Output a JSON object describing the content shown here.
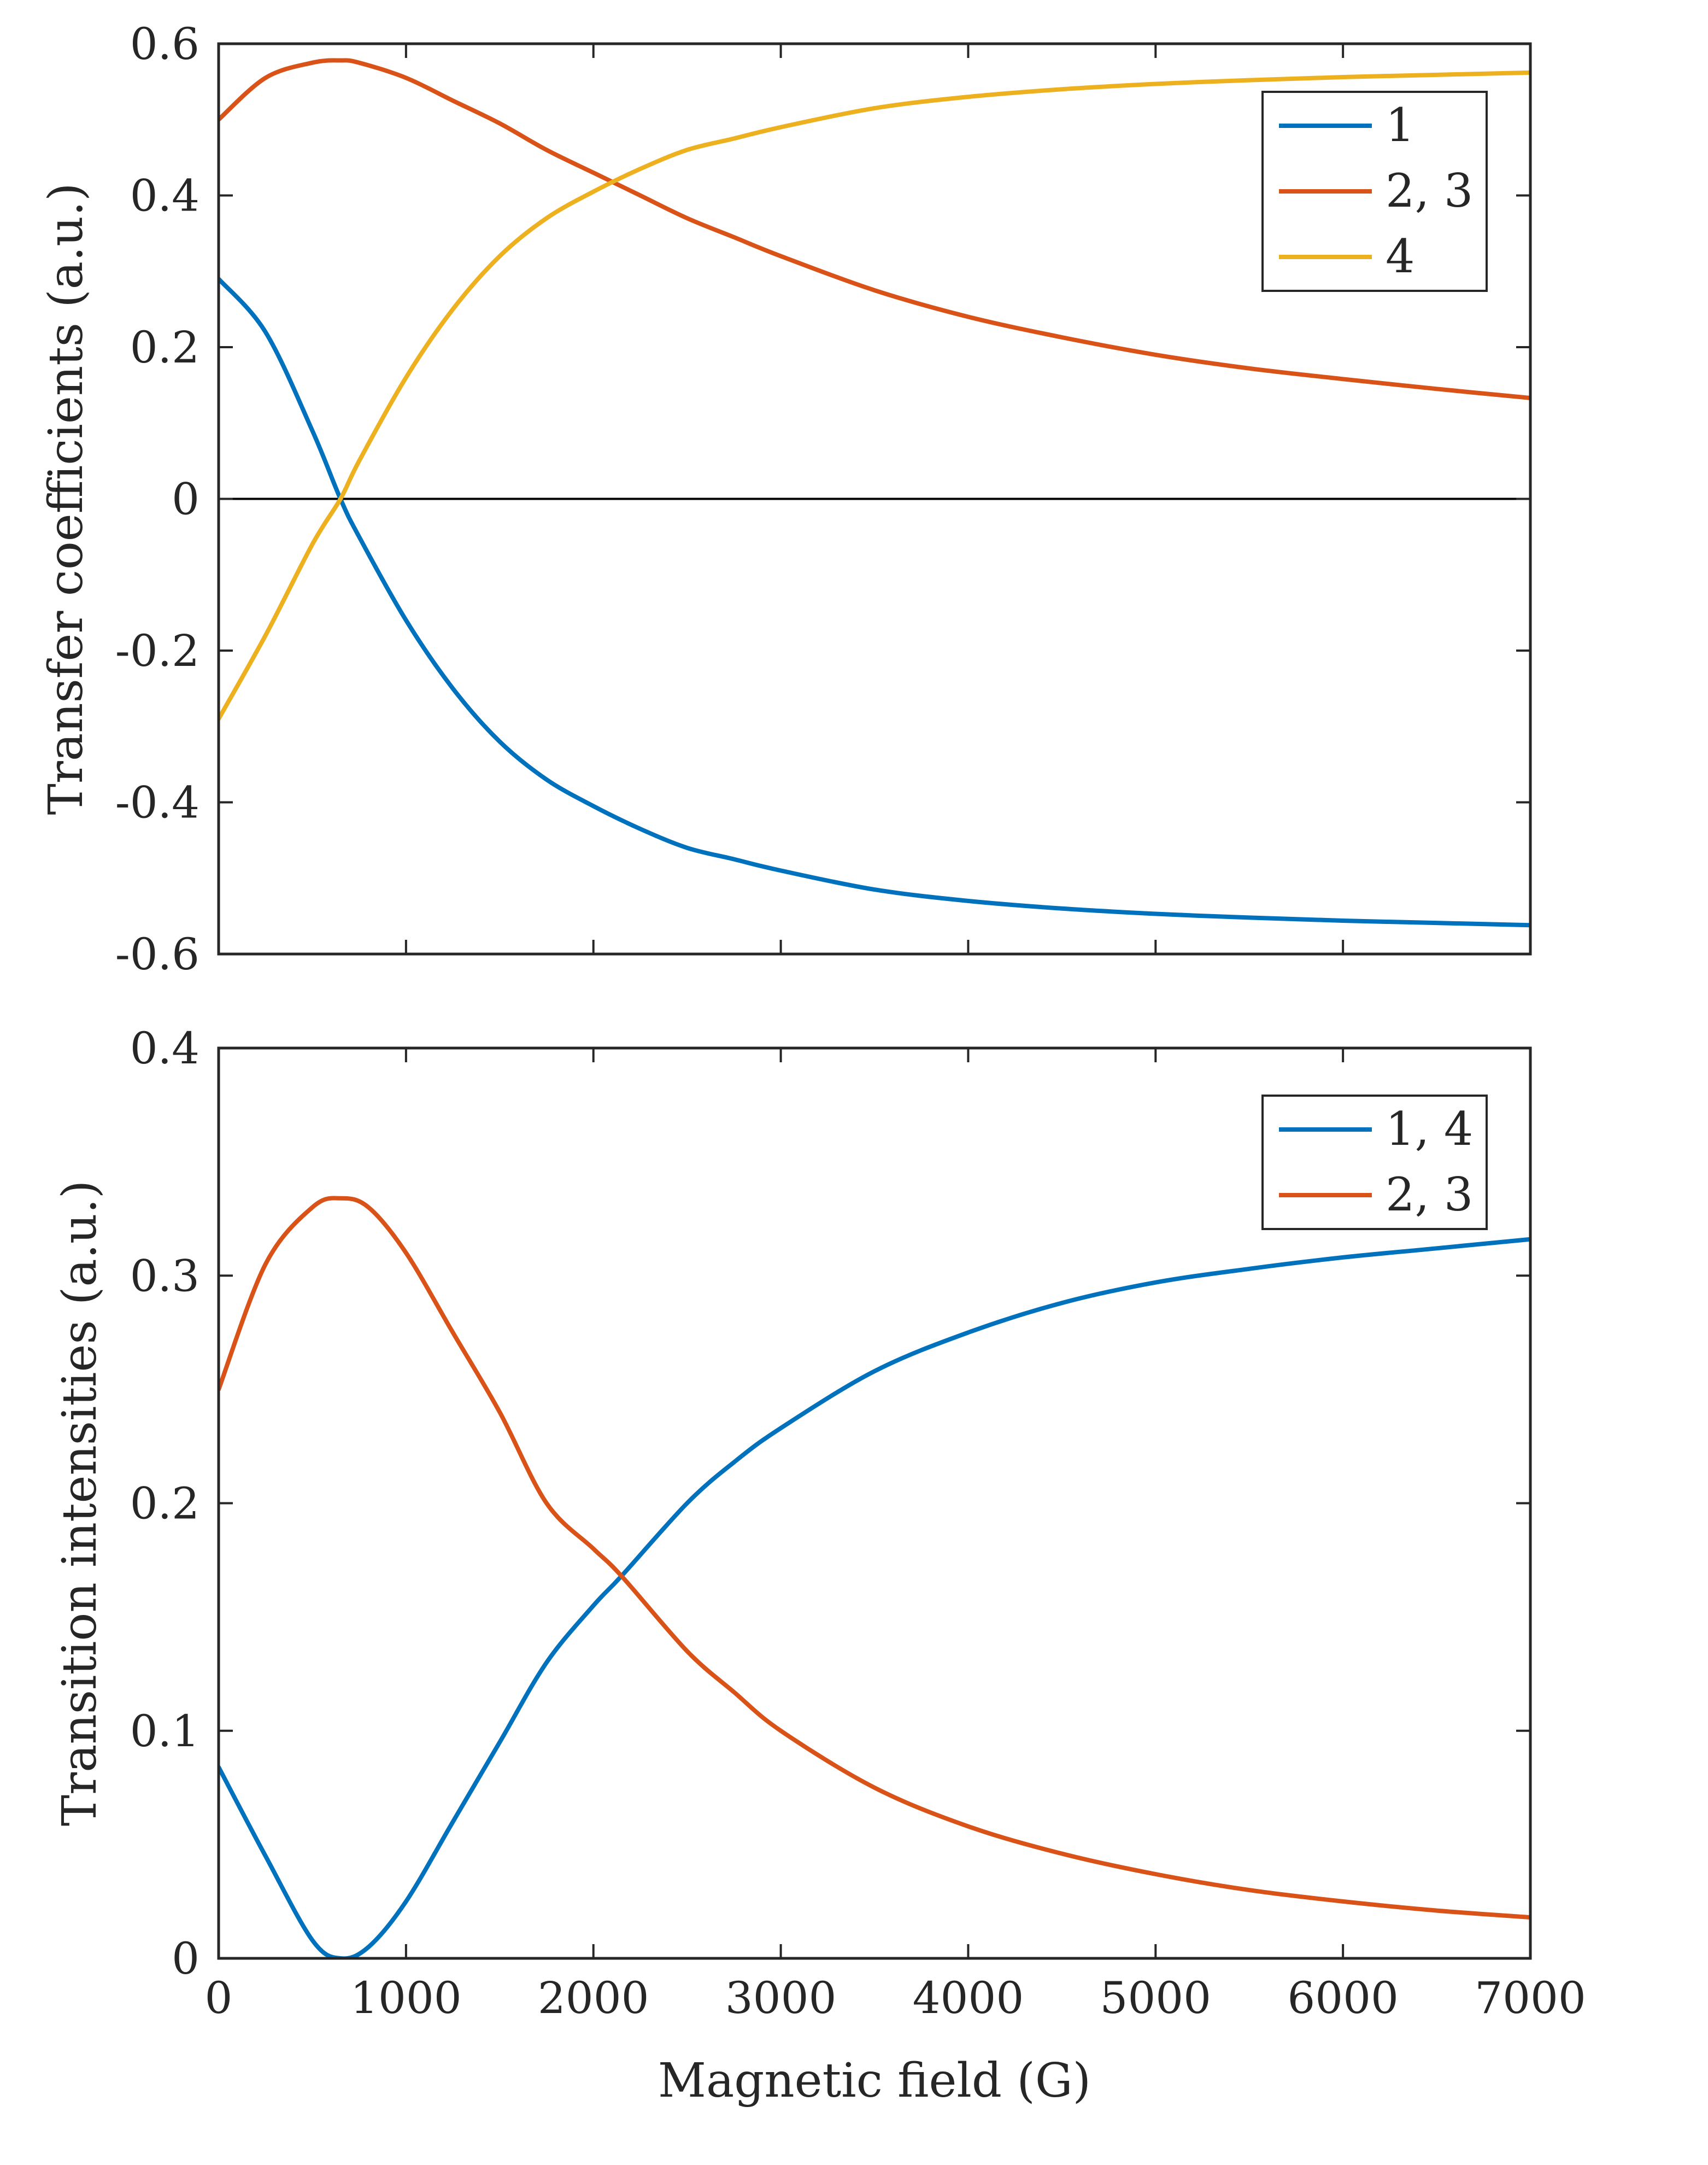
{
  "chart_data": [
    {
      "type": "line",
      "title": "",
      "xlabel": "",
      "ylabel": "Transfer coefficients (a.u.)",
      "xlim": [
        0,
        7000
      ],
      "ylim": [
        -0.6,
        0.6
      ],
      "xticks": [
        0,
        1000,
        2000,
        3000,
        4000,
        5000,
        6000,
        7000
      ],
      "yticks": [
        -0.6,
        -0.4,
        -0.2,
        0,
        0.2,
        0.4,
        0.6
      ],
      "ytick_labels": [
        "-0.6",
        "-0.4",
        "-0.2",
        "0",
        "0.2",
        "0.4",
        "0.6"
      ],
      "show_xtick_labels": false,
      "zero_line": true,
      "grid": false,
      "legend_position": "top-right",
      "x": [
        0,
        250,
        500,
        650,
        750,
        1000,
        1250,
        1500,
        1750,
        2000,
        2250,
        2500,
        2750,
        3000,
        3500,
        4000,
        4500,
        5000,
        5500,
        6000,
        6500,
        7000
      ],
      "series": [
        {
          "name": "1",
          "color": "#0072BD",
          "values": [
            0.29,
            0.22,
            0.09,
            0.0,
            -0.05,
            -0.16,
            -0.25,
            -0.32,
            -0.37,
            -0.405,
            -0.435,
            -0.46,
            -0.475,
            -0.49,
            -0.515,
            -0.53,
            -0.54,
            -0.547,
            -0.552,
            -0.556,
            -0.559,
            -0.562
          ]
        },
        {
          "name": "2, 3",
          "color": "#D95319",
          "values": [
            0.5,
            0.555,
            0.575,
            0.578,
            0.575,
            0.555,
            0.525,
            0.495,
            0.46,
            0.43,
            0.4,
            0.37,
            0.345,
            0.32,
            0.275,
            0.24,
            0.213,
            0.19,
            0.172,
            0.158,
            0.145,
            0.133
          ]
        },
        {
          "name": "4",
          "color": "#EDB120",
          "values": [
            -0.29,
            -0.18,
            -0.06,
            0.0,
            0.05,
            0.16,
            0.25,
            0.32,
            0.37,
            0.405,
            0.435,
            0.46,
            0.475,
            0.49,
            0.515,
            0.53,
            0.54,
            0.547,
            0.552,
            0.556,
            0.559,
            0.562
          ]
        }
      ]
    },
    {
      "type": "line",
      "title": "",
      "xlabel": "Magnetic field (G)",
      "ylabel": "Transition intensities (a.u.)",
      "xlim": [
        0,
        7000
      ],
      "ylim": [
        0,
        0.4
      ],
      "xticks": [
        0,
        1000,
        2000,
        3000,
        4000,
        5000,
        6000,
        7000
      ],
      "xtick_labels": [
        "0",
        "1000",
        "2000",
        "3000",
        "4000",
        "5000",
        "6000",
        "7000"
      ],
      "yticks": [
        0,
        0.1,
        0.2,
        0.3,
        0.4
      ],
      "ytick_labels": [
        "0",
        "0.1",
        "0.2",
        "0.3",
        "0.4"
      ],
      "show_xtick_labels": true,
      "zero_line": false,
      "grid": false,
      "legend_position": "top-right",
      "x": [
        0,
        250,
        500,
        650,
        800,
        1000,
        1250,
        1500,
        1750,
        2000,
        2150,
        2500,
        2750,
        3000,
        3500,
        4000,
        4500,
        5000,
        5500,
        6000,
        6500,
        7000
      ],
      "series": [
        {
          "name": "1, 4",
          "color": "#0072BD",
          "values": [
            0.084,
            0.045,
            0.008,
            0.0,
            0.005,
            0.025,
            0.06,
            0.095,
            0.13,
            0.155,
            0.168,
            0.2,
            0.218,
            0.233,
            0.258,
            0.275,
            0.288,
            0.297,
            0.303,
            0.308,
            0.312,
            0.316
          ]
        },
        {
          "name": "2, 3",
          "color": "#D95319",
          "values": [
            0.25,
            0.305,
            0.33,
            0.334,
            0.33,
            0.31,
            0.275,
            0.24,
            0.2,
            0.18,
            0.168,
            0.135,
            0.117,
            0.1,
            0.075,
            0.058,
            0.046,
            0.037,
            0.03,
            0.025,
            0.021,
            0.018
          ]
        }
      ]
    }
  ]
}
